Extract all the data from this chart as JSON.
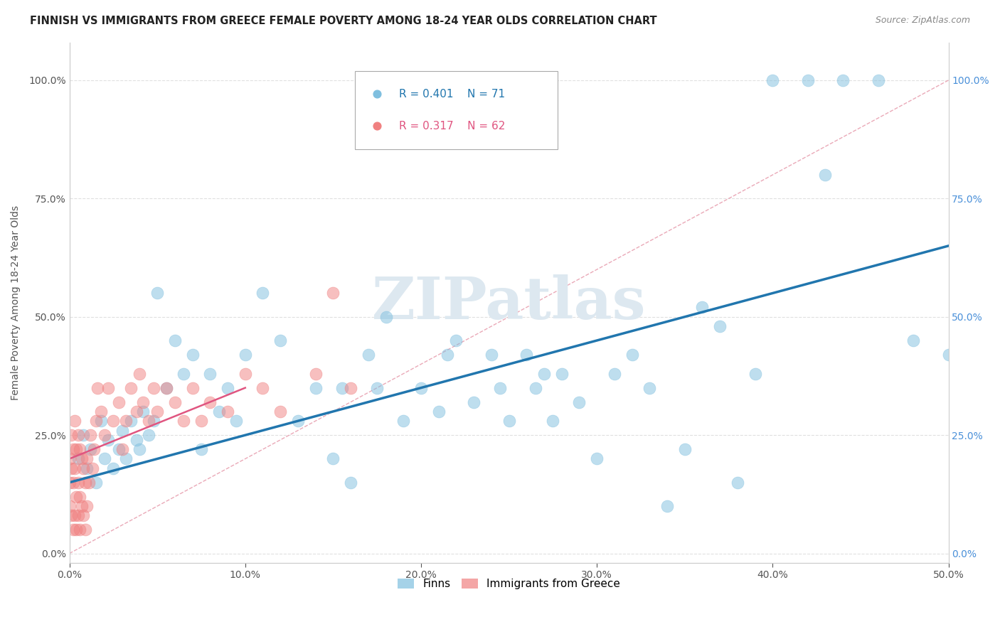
{
  "title": "FINNISH VS IMMIGRANTS FROM GREECE FEMALE POVERTY AMONG 18-24 YEAR OLDS CORRELATION CHART",
  "source": "Source: ZipAtlas.com",
  "ylabel": "Female Poverty Among 18-24 Year Olds",
  "xlim": [
    0.0,
    0.5
  ],
  "ylim": [
    -0.02,
    1.08
  ],
  "color_finns": "#7fbfdf",
  "color_greece": "#f08080",
  "color_regression_finns": "#2176ae",
  "color_regression_greece": "#e05580",
  "color_diagonal": "#e8a0b0",
  "color_ytick_right": "#4a90d9",
  "watermark_color": "#dde8f0",
  "legend_r_finns": "R = 0.401",
  "legend_n_finns": "N = 71",
  "legend_r_greece": "R = 0.317",
  "legend_n_greece": "N = 62",
  "finns_x": [
    0.005,
    0.008,
    0.01,
    0.012,
    0.015,
    0.018,
    0.02,
    0.022,
    0.025,
    0.028,
    0.03,
    0.032,
    0.035,
    0.038,
    0.04,
    0.042,
    0.045,
    0.048,
    0.05,
    0.055,
    0.06,
    0.065,
    0.07,
    0.075,
    0.08,
    0.085,
    0.09,
    0.095,
    0.1,
    0.11,
    0.12,
    0.13,
    0.14,
    0.15,
    0.155,
    0.16,
    0.17,
    0.175,
    0.18,
    0.19,
    0.2,
    0.21,
    0.215,
    0.22,
    0.23,
    0.24,
    0.245,
    0.25,
    0.26,
    0.265,
    0.27,
    0.275,
    0.28,
    0.29,
    0.3,
    0.31,
    0.32,
    0.33,
    0.34,
    0.35,
    0.36,
    0.37,
    0.38,
    0.39,
    0.4,
    0.42,
    0.43,
    0.44,
    0.46,
    0.48,
    0.5
  ],
  "finns_y": [
    0.2,
    0.25,
    0.18,
    0.22,
    0.15,
    0.28,
    0.2,
    0.24,
    0.18,
    0.22,
    0.26,
    0.2,
    0.28,
    0.24,
    0.22,
    0.3,
    0.25,
    0.28,
    0.55,
    0.35,
    0.45,
    0.38,
    0.42,
    0.22,
    0.38,
    0.3,
    0.35,
    0.28,
    0.42,
    0.55,
    0.45,
    0.28,
    0.35,
    0.2,
    0.35,
    0.15,
    0.42,
    0.35,
    0.5,
    0.28,
    0.35,
    0.3,
    0.42,
    0.45,
    0.32,
    0.42,
    0.35,
    0.28,
    0.42,
    0.35,
    0.38,
    0.28,
    0.38,
    0.32,
    0.2,
    0.38,
    0.42,
    0.35,
    0.1,
    0.22,
    0.52,
    0.48,
    0.15,
    0.38,
    1.0,
    1.0,
    0.8,
    1.0,
    1.0,
    0.45,
    0.42
  ],
  "greece_x": [
    0.0,
    0.0,
    0.0,
    0.001,
    0.001,
    0.001,
    0.002,
    0.002,
    0.002,
    0.003,
    0.003,
    0.003,
    0.004,
    0.004,
    0.004,
    0.005,
    0.005,
    0.005,
    0.006,
    0.006,
    0.006,
    0.007,
    0.007,
    0.008,
    0.008,
    0.009,
    0.009,
    0.01,
    0.01,
    0.011,
    0.012,
    0.013,
    0.014,
    0.015,
    0.016,
    0.018,
    0.02,
    0.022,
    0.025,
    0.028,
    0.03,
    0.032,
    0.035,
    0.038,
    0.04,
    0.042,
    0.045,
    0.048,
    0.05,
    0.055,
    0.06,
    0.065,
    0.07,
    0.075,
    0.08,
    0.09,
    0.1,
    0.11,
    0.12,
    0.14,
    0.15,
    0.16
  ],
  "greece_y": [
    0.1,
    0.15,
    0.2,
    0.08,
    0.18,
    0.25,
    0.05,
    0.15,
    0.22,
    0.08,
    0.18,
    0.28,
    0.05,
    0.12,
    0.22,
    0.08,
    0.15,
    0.25,
    0.05,
    0.12,
    0.22,
    0.1,
    0.2,
    0.08,
    0.18,
    0.05,
    0.15,
    0.1,
    0.2,
    0.15,
    0.25,
    0.18,
    0.22,
    0.28,
    0.35,
    0.3,
    0.25,
    0.35,
    0.28,
    0.32,
    0.22,
    0.28,
    0.35,
    0.3,
    0.38,
    0.32,
    0.28,
    0.35,
    0.3,
    0.35,
    0.32,
    0.28,
    0.35,
    0.28,
    0.32,
    0.3,
    0.38,
    0.35,
    0.3,
    0.38,
    0.55,
    0.35
  ]
}
